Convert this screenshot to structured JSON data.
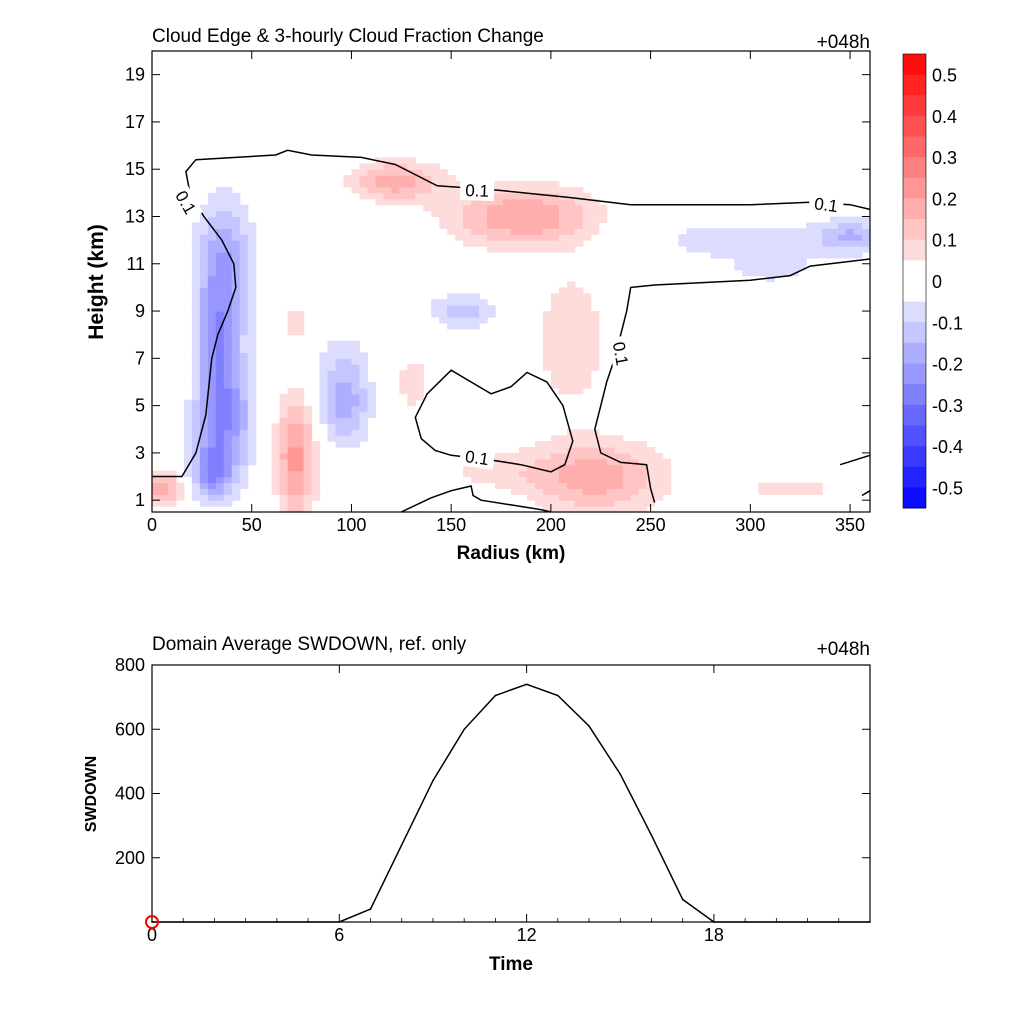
{
  "chart_data": [
    {
      "type": "heatmap",
      "title": "Cloud Edge & 3-hourly Cloud Fraction Change",
      "time_label": "+048h",
      "xlabel": "Radius (km)",
      "ylabel": "Height (km)",
      "xlim": [
        0,
        360
      ],
      "ylim": [
        0.5,
        20
      ],
      "xticks": [
        0,
        50,
        100,
        150,
        200,
        250,
        300,
        350
      ],
      "yticks": [
        1,
        3,
        5,
        7,
        9,
        11,
        13,
        15,
        17,
        19
      ],
      "colorbar": {
        "min": -0.55,
        "max": 0.55,
        "step": 0.05,
        "tick_labels": [
          "0.5",
          "0.4",
          "0.3",
          "0.2",
          "0.1",
          "0",
          "-0.1",
          "-0.2",
          "-0.3",
          "-0.4",
          "-0.5"
        ],
        "negative_color": "#0000ff",
        "positive_color": "#ff0000"
      },
      "field_blobs": [
        {
          "x": 36,
          "y": 10.5,
          "sx": 10,
          "sy": 2.2,
          "value": -0.22
        },
        {
          "x": 36,
          "y": 4.5,
          "sx": 10,
          "sy": 1.8,
          "value": -0.25
        },
        {
          "x": 30,
          "y": 2.2,
          "sx": 7,
          "sy": 0.8,
          "value": -0.2
        },
        {
          "x": 32,
          "y": 7.5,
          "sx": 6,
          "sy": 1.5,
          "value": -0.12
        },
        {
          "x": 97,
          "y": 5,
          "sx": 9,
          "sy": 1.2,
          "value": -0.17
        },
        {
          "x": 95,
          "y": 7,
          "sx": 12,
          "sy": 1,
          "value": -0.06
        },
        {
          "x": 155,
          "y": 9,
          "sx": 12,
          "sy": 0.5,
          "value": -0.13
        },
        {
          "x": 300,
          "y": 12,
          "sx": 40,
          "sy": 0.7,
          "value": -0.08
        },
        {
          "x": 350,
          "y": 12.2,
          "sx": 10,
          "sy": 0.5,
          "value": -0.13
        },
        {
          "x": 310,
          "y": 10.8,
          "sx": 12,
          "sy": 0.4,
          "value": -0.08
        },
        {
          "x": 180,
          "y": 10.5,
          "sx": 10,
          "sy": 0.4,
          "value": -0.05
        },
        {
          "x": 72,
          "y": 2.8,
          "sx": 7,
          "sy": 1.8,
          "value": 0.22
        },
        {
          "x": 5,
          "y": 1.5,
          "sx": 7,
          "sy": 0.5,
          "value": 0.2
        },
        {
          "x": 186,
          "y": 13,
          "sx": 26,
          "sy": 0.9,
          "value": 0.2
        },
        {
          "x": 122,
          "y": 14.5,
          "sx": 16,
          "sy": 0.6,
          "value": 0.18
        },
        {
          "x": 222,
          "y": 2,
          "sx": 24,
          "sy": 1.1,
          "value": 0.18
        },
        {
          "x": 210,
          "y": 7.8,
          "sx": 12,
          "sy": 2,
          "value": 0.1
        },
        {
          "x": 130,
          "y": 6,
          "sx": 10,
          "sy": 1.5,
          "value": 0.06
        },
        {
          "x": 72,
          "y": 8.5,
          "sx": 8,
          "sy": 1.2,
          "value": 0.06
        },
        {
          "x": 300,
          "y": 13.2,
          "sx": 20,
          "sy": 0.3,
          "value": 0.05
        },
        {
          "x": 320,
          "y": 1.5,
          "sx": 25,
          "sy": 0.6,
          "value": 0.06
        },
        {
          "x": 170,
          "y": 2.3,
          "sx": 20,
          "sy": 0.6,
          "value": 0.06
        }
      ],
      "contour_level_label": "0.1",
      "contours": [
        {
          "label_at": [
            [
              17,
              13.6,
              60
            ],
            [
              163,
              14.1,
              2
            ],
            [
              338,
              13.5,
              8
            ]
          ],
          "points": [
            [
              0,
              2
            ],
            [
              15,
              2
            ],
            [
              22,
              3
            ],
            [
              27,
              4.6
            ],
            [
              30,
              7
            ],
            [
              33,
              8
            ],
            [
              38,
              9
            ],
            [
              42,
              10
            ],
            [
              41,
              11
            ],
            [
              35,
              12
            ],
            [
              26,
              13
            ],
            [
              19,
              14
            ],
            [
              17,
              14.9
            ],
            [
              22,
              15.4
            ],
            [
              62,
              15.6
            ],
            [
              68,
              15.8
            ],
            [
              80,
              15.6
            ],
            [
              105,
              15.5
            ],
            [
              122,
              15.2
            ],
            [
              143,
              14.3
            ],
            [
              160,
              14.2
            ],
            [
              175,
              14.1
            ],
            [
              210,
              13.8
            ],
            [
              240,
              13.5
            ],
            [
              300,
              13.5
            ],
            [
              330,
              13.6
            ],
            [
              350,
              13.5
            ],
            [
              360,
              13.3
            ]
          ]
        },
        {
          "label_at": [
            [
              163,
              2.8,
              8
            ]
          ],
          "points": [
            [
              150,
              2.9
            ],
            [
              170,
              2.7
            ],
            [
              185,
              2.5
            ],
            [
              200,
              2.2
            ],
            [
              207,
              2.5
            ],
            [
              211,
              3.5
            ],
            [
              206,
              5
            ],
            [
              198,
              6
            ],
            [
              188,
              6.4
            ],
            [
              180,
              5.8
            ],
            [
              170,
              5.5
            ],
            [
              160,
              6
            ],
            [
              150,
              6.5
            ],
            [
              138,
              5.5
            ],
            [
              132,
              4.5
            ],
            [
              135,
              3.6
            ],
            [
              142,
              3.1
            ],
            [
              150,
              2.9
            ]
          ]
        },
        {
          "label_at": [
            [
              235,
              7.2,
              80
            ]
          ],
          "points": [
            [
              360,
              11.2
            ],
            [
              340,
              11
            ],
            [
              330,
              10.9
            ],
            [
              320,
              10.5
            ],
            [
              300,
              10.3
            ],
            [
              252,
              10.1
            ],
            [
              240,
              10
            ],
            [
              238,
              9
            ],
            [
              235,
              8
            ],
            [
              232,
              7
            ],
            [
              228,
              6
            ],
            [
              225,
              5
            ],
            [
              222,
              4
            ],
            [
              225,
              3
            ],
            [
              235,
              2.6
            ],
            [
              248,
              2.5
            ],
            [
              250,
              1.5
            ],
            [
              252,
              0.9
            ]
          ]
        },
        {
          "label_at": [],
          "points": [
            [
              125,
              0.5
            ],
            [
              140,
              1.1
            ],
            [
              150,
              1.4
            ],
            [
              155,
              1.5
            ],
            [
              160,
              1.6
            ],
            [
              161,
              1.2
            ],
            [
              165,
              1
            ],
            [
              180,
              0.8
            ],
            [
              195,
              0.6
            ],
            [
              200,
              0.5
            ]
          ]
        },
        {
          "label_at": [],
          "points": [
            [
              345,
              2.5
            ],
            [
              360,
              2.9
            ]
          ]
        },
        {
          "label_at": [],
          "points": [
            [
              356,
              1.2
            ],
            [
              360,
              1.4
            ]
          ]
        }
      ]
    },
    {
      "type": "line",
      "title": "Domain Average SWDOWN, ref. only",
      "time_label": "+048h",
      "xlabel": "Time",
      "ylabel": "SWDOWN",
      "xlim": [
        0,
        23
      ],
      "ylim": [
        0,
        800
      ],
      "xticks": [
        0,
        6,
        12,
        18
      ],
      "yticks": [
        200,
        400,
        600,
        800
      ],
      "series": [
        {
          "values": [
            0,
            0,
            0,
            0,
            0,
            0,
            0,
            40,
            240,
            440,
            600,
            705,
            740,
            705,
            610,
            460,
            270,
            70,
            0,
            0,
            0,
            0,
            0,
            0
          ],
          "x": [
            0,
            1,
            2,
            3,
            4,
            5,
            6,
            7,
            8,
            9,
            10,
            11,
            12,
            13,
            14,
            15,
            16,
            17,
            18,
            19,
            20,
            21,
            22,
            23
          ],
          "color": "#000000"
        }
      ],
      "marker": {
        "x": 0,
        "y": 0,
        "color": "#ff0000"
      }
    }
  ]
}
